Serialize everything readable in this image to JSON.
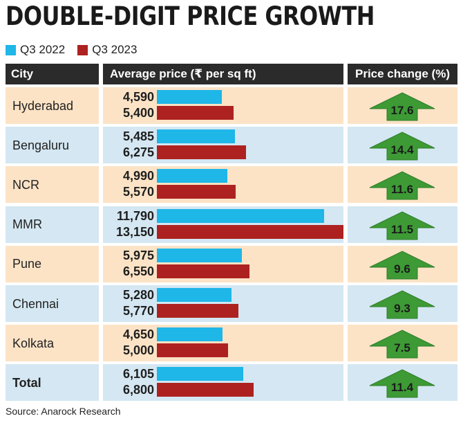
{
  "title": "DOUBLE-DIGIT PRICE GROWTH",
  "legend": [
    {
      "label": "Q3 2022",
      "color": "#1fb6e8"
    },
    {
      "label": "Q3 2023",
      "color": "#ad2220"
    }
  ],
  "headers": {
    "city": "City",
    "avg_price": "Average price (₹ per sq ft)",
    "price_change": "Price change (%)"
  },
  "colors": {
    "row_odd": "#fce3c6",
    "row_even": "#d4e7f2",
    "header_bg": "#2b2b2b",
    "arrow_fill": "#3d9a35",
    "arrow_stroke": "#2f7d2a"
  },
  "chart_data": {
    "type": "bar",
    "orientation": "horizontal",
    "title": "DOUBLE-DIGIT PRICE GROWTH",
    "categories": [
      "Hyderabad",
      "Bengaluru",
      "NCR",
      "MMR",
      "Pune",
      "Chennai",
      "Kolkata",
      "Total"
    ],
    "series": [
      {
        "name": "Q3 2022",
        "values": [
          4590,
          5485,
          4990,
          11790,
          5975,
          5280,
          4650,
          6105
        ]
      },
      {
        "name": "Q3 2023",
        "values": [
          5400,
          6275,
          5570,
          13150,
          6550,
          5770,
          5000,
          6800
        ]
      }
    ],
    "value_labels": [
      [
        "4,590",
        "5,485",
        "4,990",
        "11,790",
        "5,975",
        "5,280",
        "4,650",
        "6,105"
      ],
      [
        "5,400",
        "6,275",
        "5,570",
        "13,150",
        "6,550",
        "5,770",
        "5,000",
        "6,800"
      ]
    ],
    "price_change": [
      17.6,
      14.4,
      11.6,
      11.5,
      9.6,
      9.3,
      7.5,
      11.4
    ],
    "price_change_labels": [
      "17.6",
      "14.4",
      "11.6",
      "11.5",
      "9.6",
      "9.3",
      "7.5",
      "11.4"
    ],
    "xlim": [
      0,
      13150
    ],
    "grid": false,
    "legend_position": "top-left"
  },
  "source": "Source: Anarock Research"
}
